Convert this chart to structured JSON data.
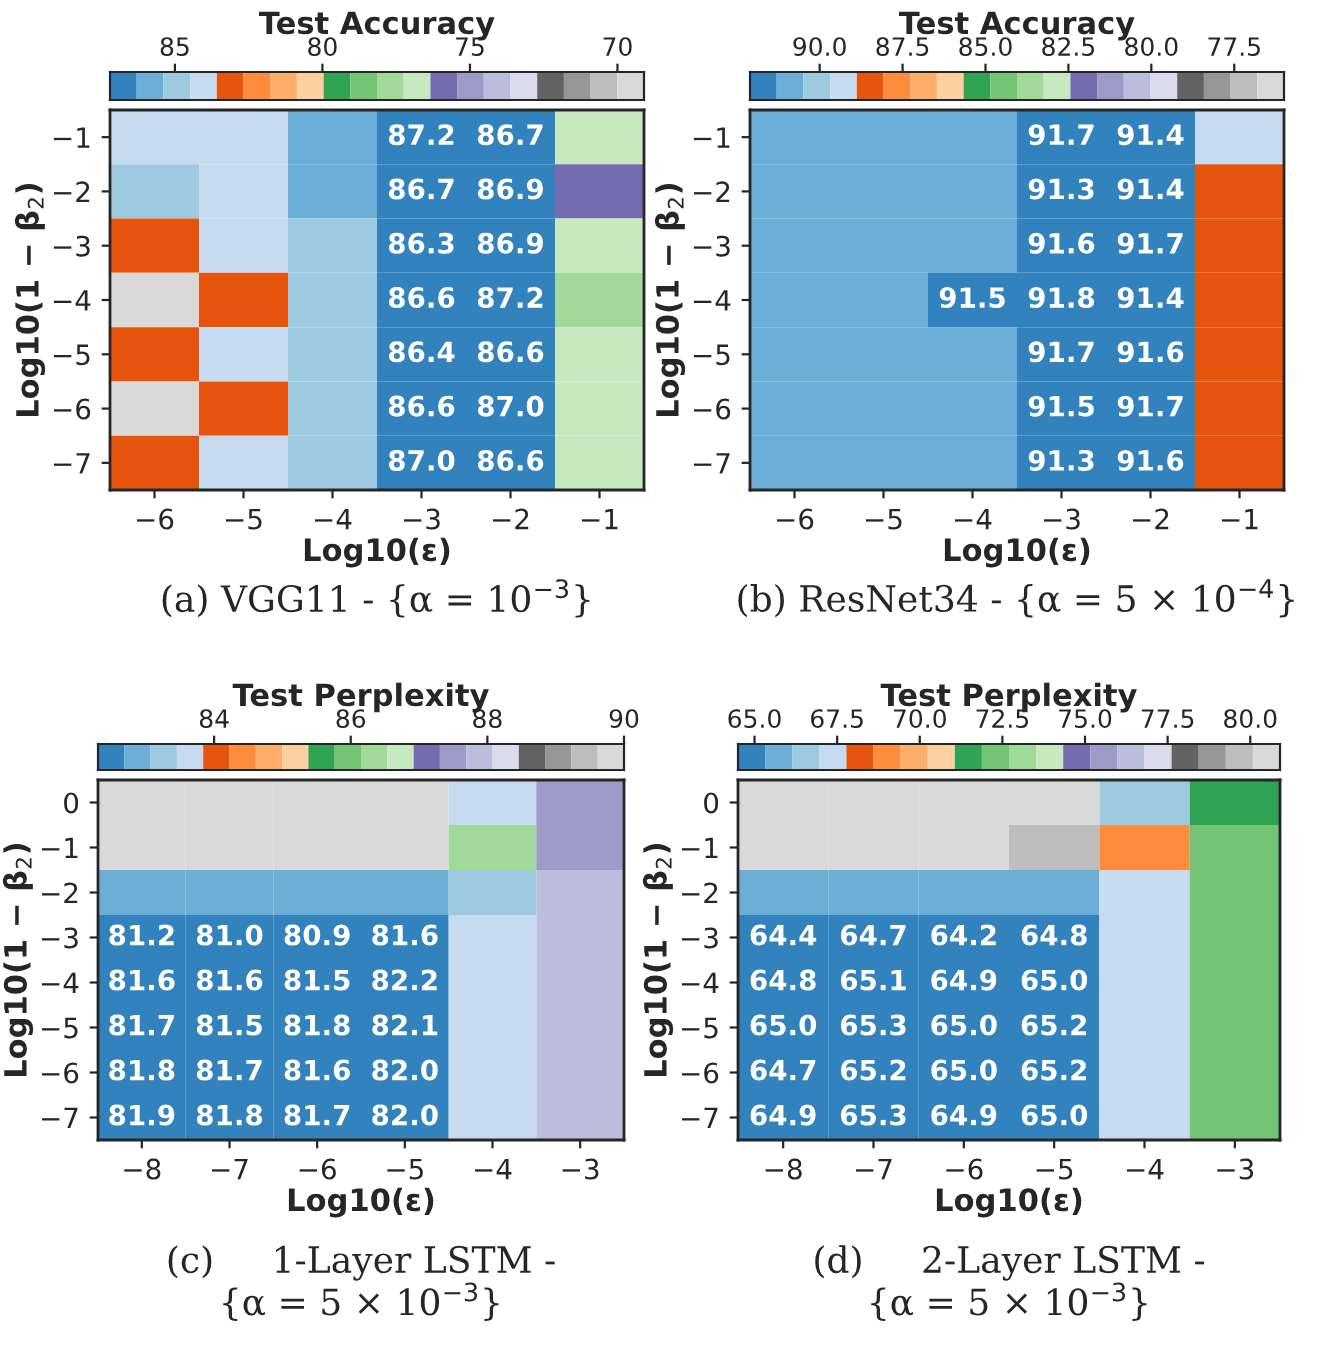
{
  "chart_data": [
    {
      "type": "heatmap",
      "clabel": "Test Accuracy",
      "xlabel": "Log10(ε)",
      "ylabel": "Log10(1 − β$_{2}$)",
      "annotations": [
        "(a) VGG11 - {α = 10$^{−3}$}"
      ],
      "categories": [
        "−6",
        "−5",
        "−4",
        "−3",
        "−2",
        "−1"
      ],
      "y_categories": [
        "−1",
        "−2",
        "−3",
        "−4",
        "−5",
        "−6",
        "−7"
      ],
      "clim": [
        87.2,
        69.1
      ],
      "cticks": [
        85,
        80,
        75,
        70
      ],
      "cells": [
        [
          84.0,
          84.0,
          85.8,
          87.2,
          86.7,
          76.8
        ],
        [
          84.9,
          84.0,
          85.8,
          86.7,
          86.9,
          75.9
        ],
        [
          83.1,
          84.0,
          84.9,
          86.3,
          86.9,
          76.8
        ],
        [
          69.6,
          83.1,
          84.9,
          86.6,
          87.2,
          77.7
        ],
        [
          83.1,
          84.0,
          84.9,
          86.4,
          86.6,
          76.8
        ],
        [
          69.6,
          83.1,
          84.9,
          86.6,
          87.0,
          76.8
        ],
        [
          83.1,
          84.0,
          84.9,
          87.0,
          86.6,
          76.8
        ]
      ],
      "cell_labels": [
        [
          null,
          null,
          null,
          "87.2",
          "86.7",
          null
        ],
        [
          null,
          null,
          null,
          "86.7",
          "86.9",
          null
        ],
        [
          null,
          null,
          null,
          "86.3",
          "86.9",
          null
        ],
        [
          null,
          null,
          null,
          "86.6",
          "87.2",
          null
        ],
        [
          null,
          null,
          null,
          "86.4",
          "86.6",
          null
        ],
        [
          null,
          null,
          null,
          "86.6",
          "87.0",
          null
        ],
        [
          null,
          null,
          null,
          "87.0",
          "86.6",
          null
        ]
      ]
    },
    {
      "type": "heatmap",
      "clabel": "Test Accuracy",
      "xlabel": "Log10(ε)",
      "ylabel": "Log10(1 − β$_{2}$)",
      "annotations": [
        "(b) ResNet34 - {α = 5 × 10$^{−4}$}"
      ],
      "categories": [
        "−6",
        "−5",
        "−4",
        "−3",
        "−2",
        "−1"
      ],
      "y_categories": [
        "−1",
        "−2",
        "−3",
        "−4",
        "−5",
        "−6",
        "−7"
      ],
      "clim": [
        92.1,
        76.0
      ],
      "cticks": [
        {
          "value": 90,
          "label": "90.0"
        },
        87.5,
        {
          "value": 85,
          "label": "85.0"
        },
        82.5,
        {
          "value": 80,
          "label": "80.0"
        },
        77.5
      ],
      "cells": [
        [
          90.9,
          90.9,
          90.9,
          91.7,
          91.4,
          89.3
        ],
        [
          90.9,
          90.9,
          90.9,
          91.3,
          91.4,
          88.5
        ],
        [
          90.9,
          90.9,
          90.9,
          91.6,
          91.7,
          88.5
        ],
        [
          90.9,
          90.9,
          91.5,
          91.8,
          91.4,
          88.5
        ],
        [
          90.9,
          90.9,
          90.9,
          91.7,
          91.6,
          88.5
        ],
        [
          90.9,
          90.9,
          90.9,
          91.5,
          91.7,
          88.5
        ],
        [
          90.9,
          90.9,
          90.9,
          91.3,
          91.6,
          88.5
        ]
      ],
      "cell_labels": [
        [
          null,
          null,
          null,
          "91.7",
          "91.4",
          null
        ],
        [
          null,
          null,
          null,
          "91.3",
          "91.4",
          null
        ],
        [
          null,
          null,
          null,
          "91.6",
          "91.7",
          null
        ],
        [
          null,
          null,
          "91.5",
          "91.8",
          "91.4",
          null
        ],
        [
          null,
          null,
          null,
          "91.7",
          "91.6",
          null
        ],
        [
          null,
          null,
          null,
          "91.5",
          "91.7",
          null
        ],
        [
          null,
          null,
          null,
          "91.3",
          "91.6",
          null
        ]
      ]
    },
    {
      "type": "heatmap",
      "clabel": "Test Perplexity",
      "xlabel": "Log10(ε)",
      "ylabel": "Log10(1 − β$_{2}$)",
      "annotations": [
        "(c)     1-Layer LSTM -\n{α = 5 × 10$^{−3}$}"
      ],
      "categories": [
        "−8",
        "−7",
        "−6",
        "−5",
        "−4",
        "−3"
      ],
      "y_categories": [
        "0",
        "−1",
        "−2",
        "−3",
        "−4",
        "−5",
        "−6",
        "−7"
      ],
      "clim": [
        82.3,
        90.0
      ],
      "cticks": [
        84,
        86,
        88,
        90
      ],
      "cells": [
        [
          89.8,
          89.8,
          89.8,
          89.8,
          83.6,
          87.5
        ],
        [
          89.8,
          89.8,
          89.8,
          89.8,
          86.3,
          87.5
        ],
        [
          82.9,
          82.9,
          82.9,
          82.9,
          83.3,
          87.9
        ],
        [
          81.2,
          81.0,
          80.9,
          81.6,
          83.6,
          87.9
        ],
        [
          81.6,
          81.6,
          81.5,
          82.2,
          83.6,
          87.9
        ],
        [
          81.7,
          81.5,
          81.8,
          82.1,
          83.6,
          87.9
        ],
        [
          81.8,
          81.7,
          81.6,
          82.0,
          83.6,
          87.9
        ],
        [
          81.9,
          81.8,
          81.7,
          82.0,
          83.6,
          87.9
        ]
      ],
      "cell_labels": [
        [
          null,
          null,
          null,
          null,
          null,
          null
        ],
        [
          null,
          null,
          null,
          null,
          null,
          null
        ],
        [
          null,
          null,
          null,
          null,
          null,
          null
        ],
        [
          "81.2",
          "81.0",
          "80.9",
          "81.6",
          null,
          null
        ],
        [
          "81.6",
          "81.6",
          "81.5",
          "82.2",
          null,
          null
        ],
        [
          "81.7",
          "81.5",
          "81.8",
          "82.1",
          null,
          null
        ],
        [
          "81.8",
          "81.7",
          "81.6",
          "82.0",
          null,
          null
        ],
        [
          "81.9",
          "81.8",
          "81.7",
          "82.0",
          null,
          null
        ]
      ]
    },
    {
      "type": "heatmap",
      "clabel": "Test Perplexity",
      "xlabel": "Log10(ε)",
      "ylabel": "Log10(1 − β$_{2}$)",
      "annotations": [
        "(d)     2-Layer LSTM -\n{α = 5 × 10$^{−3}$}"
      ],
      "categories": [
        "−8",
        "−7",
        "−6",
        "−5",
        "−4",
        "−3"
      ],
      "y_categories": [
        "0",
        "−1",
        "−2",
        "−3",
        "−4",
        "−5",
        "−6",
        "−7"
      ],
      "clim": [
        64.5,
        80.9
      ],
      "cticks": [
        {
          "value": 65,
          "label": "65.0"
        },
        67.5,
        {
          "value": 70,
          "label": "70.0"
        },
        72.5,
        {
          "value": 75,
          "label": "75.0"
        },
        77.5,
        {
          "value": 80,
          "label": "80.0"
        }
      ],
      "cells": [
        [
          80.5,
          80.5,
          80.5,
          80.5,
          66.6,
          71.5
        ],
        [
          80.5,
          80.5,
          80.5,
          79.7,
          69.0,
          72.3
        ],
        [
          65.7,
          65.7,
          65.7,
          65.7,
          67.4,
          72.3
        ],
        [
          64.4,
          64.7,
          64.2,
          64.8,
          67.4,
          72.3
        ],
        [
          64.8,
          65.1,
          64.9,
          65.0,
          67.4,
          72.3
        ],
        [
          65.0,
          65.3,
          65.0,
          65.2,
          67.4,
          72.3
        ],
        [
          64.7,
          65.2,
          65.0,
          65.2,
          67.4,
          72.3
        ],
        [
          64.9,
          65.3,
          64.9,
          65.0,
          67.4,
          72.3
        ]
      ],
      "cell_labels": [
        [
          null,
          null,
          null,
          null,
          null,
          null
        ],
        [
          null,
          null,
          null,
          null,
          null,
          null
        ],
        [
          null,
          null,
          null,
          null,
          null,
          null
        ],
        [
          "64.4",
          "64.7",
          "64.2",
          "64.8",
          null,
          null
        ],
        [
          "64.8",
          "65.1",
          "64.9",
          "65.0",
          null,
          null
        ],
        [
          "65.0",
          "65.3",
          "65.0",
          "65.2",
          null,
          null
        ],
        [
          "64.7",
          "65.2",
          "65.0",
          "65.2",
          null,
          null
        ],
        [
          "64.9",
          "65.3",
          "64.9",
          "65.0",
          null,
          null
        ]
      ]
    }
  ]
}
